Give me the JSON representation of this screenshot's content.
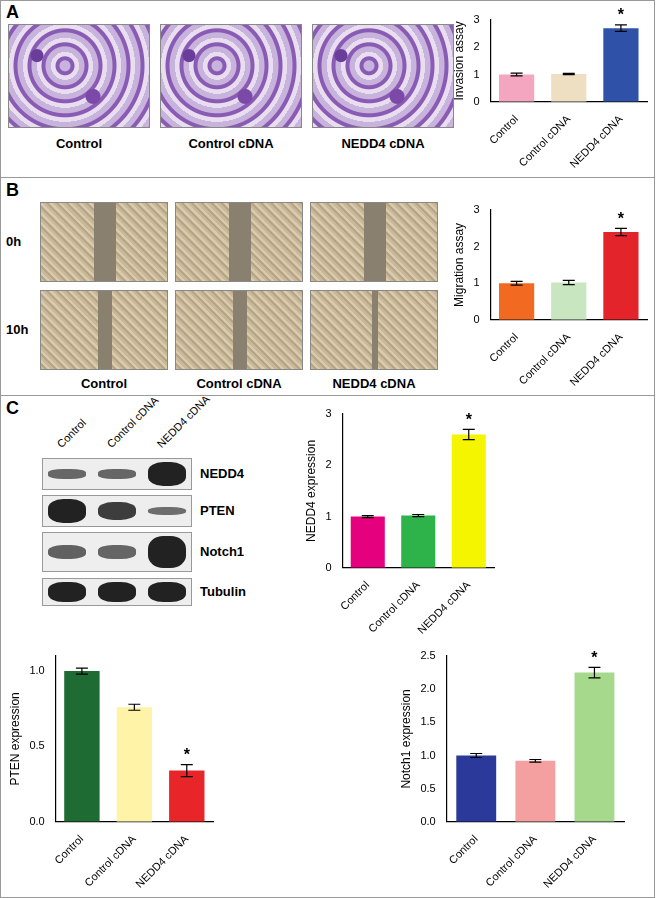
{
  "panels": [
    {
      "letter": "A",
      "image_labels": [
        "Control",
        "Control cDNA",
        "NEDD4 cDNA"
      ]
    },
    {
      "letter": "B",
      "row_labels": [
        "0h",
        "10h"
      ],
      "image_labels": [
        "Control",
        "Control cDNA",
        "NEDD4 cDNA"
      ]
    },
    {
      "letter": "C",
      "blot_lanes": [
        "Control",
        "Control cDNA",
        "NEDD4 cDNA"
      ],
      "blot_rows": [
        "NEDD4",
        "PTEN",
        "Notch1",
        "Tubulin"
      ]
    }
  ],
  "chart_data": [
    {
      "type": "bar",
      "ylabel": "Invasion assay",
      "categories": [
        "Control",
        "Control cDNA",
        "NEDD4 cDNA"
      ],
      "values": [
        1.0,
        1.02,
        2.7
      ],
      "errors": [
        0.05,
        0.02,
        0.12
      ],
      "colors": [
        "#f4a6c0",
        "#eedfc2",
        "#2f52a8"
      ],
      "ylim": [
        0,
        3
      ],
      "yticks": [
        0,
        1,
        2,
        3
      ],
      "grid": false,
      "annotations": [
        {
          "category": "NEDD4 cDNA",
          "text": "*"
        }
      ]
    },
    {
      "type": "bar",
      "ylabel": "Migration assay",
      "categories": [
        "Control",
        "Control cDNA",
        "NEDD4 cDNA"
      ],
      "values": [
        1.0,
        1.02,
        2.4
      ],
      "errors": [
        0.05,
        0.06,
        0.1
      ],
      "colors": [
        "#f26a21",
        "#c8e6c0",
        "#e3242b"
      ],
      "ylim": [
        0,
        3
      ],
      "yticks": [
        0,
        1,
        2,
        3
      ],
      "grid": false,
      "annotations": [
        {
          "category": "NEDD4 cDNA",
          "text": "*"
        }
      ]
    },
    {
      "type": "bar",
      "ylabel": "NEDD4 expression",
      "categories": [
        "Control",
        "Control cDNA",
        "NEDD4 cDNA"
      ],
      "values": [
        1.0,
        1.02,
        2.6
      ],
      "errors": [
        0.02,
        0.02,
        0.1
      ],
      "colors": [
        "#e5007e",
        "#2db34a",
        "#f5f500"
      ],
      "ylim": [
        0,
        3
      ],
      "yticks": [
        0,
        1,
        2,
        3
      ],
      "grid": false,
      "annotations": [
        {
          "category": "NEDD4 cDNA",
          "text": "*"
        }
      ]
    },
    {
      "type": "bar",
      "ylabel": "PTEN expression",
      "categories": [
        "Control",
        "Control cDNA",
        "NEDD4 cDNA"
      ],
      "values": [
        1.0,
        0.76,
        0.34
      ],
      "errors": [
        0.02,
        0.02,
        0.04
      ],
      "colors": [
        "#1e6b34",
        "#fff3a8",
        "#e8262a"
      ],
      "ylim": [
        0,
        1.1
      ],
      "yticks": [
        {
          "value": 0,
          "label": "0.0"
        },
        {
          "value": 0.5,
          "label": "0.5"
        },
        {
          "value": 1,
          "label": "1.0"
        }
      ],
      "grid": false,
      "annotations": [
        {
          "category": "NEDD4 cDNA",
          "text": "*"
        }
      ]
    },
    {
      "type": "bar",
      "ylabel": "Notch1 expression",
      "categories": [
        "Control",
        "Control cDNA",
        "NEDD4 cDNA"
      ],
      "values": [
        1.0,
        0.92,
        2.25
      ],
      "errors": [
        0.03,
        0.02,
        0.08
      ],
      "colors": [
        "#2b3a9a",
        "#f4a0a0",
        "#a6d98c"
      ],
      "ylim": [
        0,
        2.5
      ],
      "yticks": [
        {
          "value": 0,
          "label": "0.0"
        },
        {
          "value": 0.5,
          "label": "0.5"
        },
        {
          "value": 1,
          "label": "1.0"
        },
        {
          "value": 1.5,
          "label": "1.5"
        },
        {
          "value": 2,
          "label": "2.0"
        },
        {
          "value": 2.5,
          "label": "2.5"
        }
      ],
      "grid": false,
      "annotations": [
        {
          "category": "NEDD4 cDNA",
          "text": "*"
        }
      ]
    }
  ]
}
